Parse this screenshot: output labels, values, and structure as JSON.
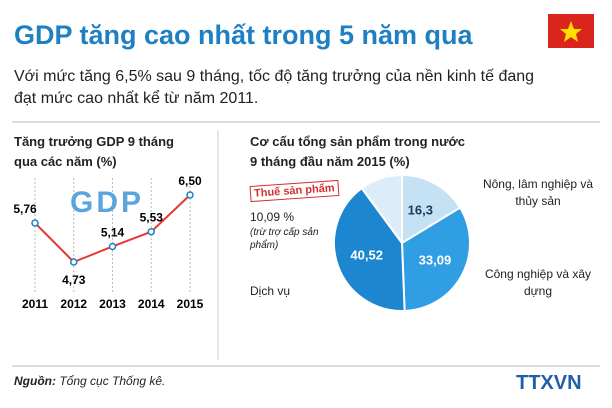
{
  "title": "GDP tăng cao nhất trong 5 năm qua",
  "subtitle": "Với mức tăng 6,5% sau 9 tháng, tốc độ tăng trưởng của nền kinh tế đang đạt mức cao nhất kể từ năm 2011.",
  "chart_data": [
    {
      "type": "line",
      "title": "Tăng trưởng GDP 9 tháng qua các năm (%)",
      "annotation": "GDP",
      "categories": [
        "2011",
        "2012",
        "2013",
        "2014",
        "2015"
      ],
      "values": [
        5.76,
        4.73,
        5.14,
        5.53,
        6.5
      ],
      "value_labels": [
        "5,76",
        "4,73",
        "5,14",
        "5,53",
        "6,50"
      ],
      "color": "#e53935"
    },
    {
      "type": "pie",
      "title": "Cơ cấu tổng sản phẩm trong nước 9 tháng đầu năm 2015 (%)",
      "categories": [
        "Nông, lâm nghiệp và thủy sản",
        "Công nghiệp và xây dựng",
        "Dịch vụ",
        "Thuế sản phẩm"
      ],
      "values": [
        16.3,
        33.09,
        40.52,
        10.09
      ],
      "value_labels": [
        "16,3",
        "33,09",
        "40,52",
        "10,09 %"
      ],
      "colors": [
        "#c5e2f5",
        "#2f9ee2",
        "#1c86d0",
        "#dcedf9"
      ],
      "annotation": "(trừ trợ cấp sản phẩm)"
    }
  ],
  "footer": {
    "source_label": "Nguồn:",
    "source": "Tổng cục Thống kê.",
    "logo": "TTXVN"
  }
}
